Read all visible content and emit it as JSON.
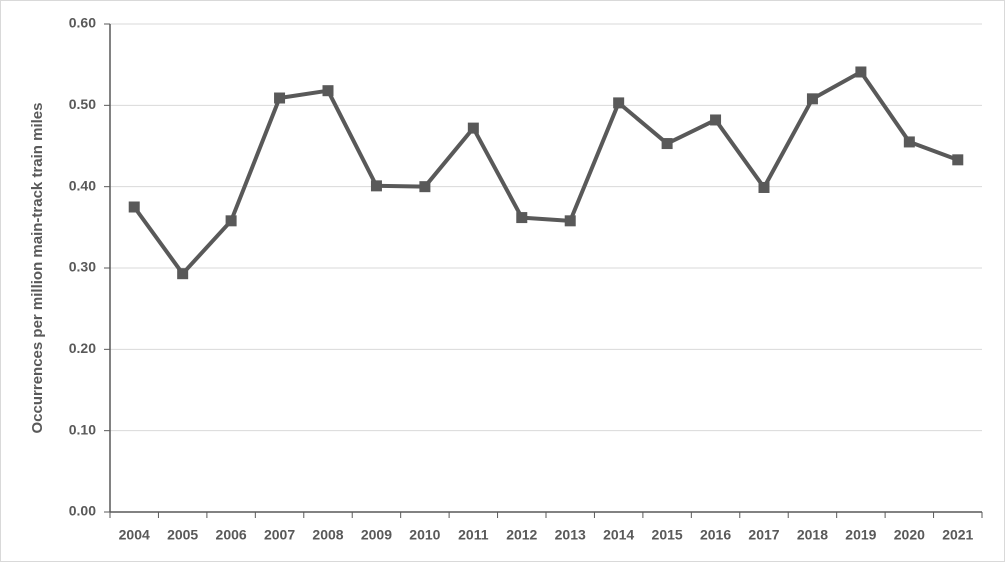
{
  "chart_data": {
    "type": "line",
    "y_label": "Occurrences per million main-track train miles",
    "categories": [
      "2004",
      "2005",
      "2006",
      "2007",
      "2008",
      "2009",
      "2010",
      "2011",
      "2012",
      "2013",
      "2014",
      "2015",
      "2016",
      "2017",
      "2018",
      "2019",
      "2020",
      "2021"
    ],
    "values": [
      0.375,
      0.293,
      0.358,
      0.509,
      0.518,
      0.401,
      0.4,
      0.472,
      0.362,
      0.358,
      0.503,
      0.453,
      0.482,
      0.399,
      0.508,
      0.541,
      0.455,
      0.433
    ],
    "color": "#595959",
    "ylim": [
      0,
      0.6
    ],
    "yticks": [
      {
        "value": 0,
        "label": "0.00"
      },
      {
        "value": 0.1,
        "label": "0.10"
      },
      {
        "value": 0.2,
        "label": "0.20"
      },
      {
        "value": 0.3,
        "label": "0.30"
      },
      {
        "value": 0.4,
        "label": "0.40"
      },
      {
        "value": 0.5,
        "label": "0.50"
      },
      {
        "value": 0.6,
        "label": "0.60"
      }
    ],
    "grid": true
  }
}
